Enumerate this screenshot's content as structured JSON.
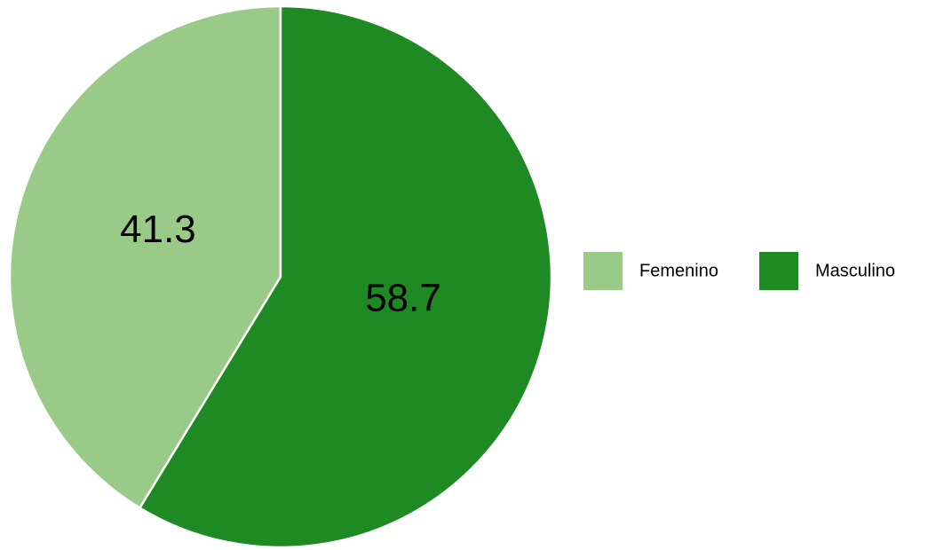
{
  "chart_data": {
    "type": "pie",
    "categories": [
      "Femenino",
      "Masculino"
    ],
    "values": [
      41.3,
      58.7
    ],
    "colors": [
      "#9aca87",
      "#1f8a24"
    ],
    "legend": "right"
  }
}
